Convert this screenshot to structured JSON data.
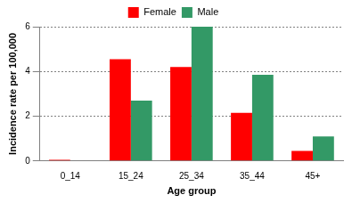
{
  "chart_data": {
    "type": "bar",
    "categories": [
      "0_14",
      "15_24",
      "25_34",
      "35_44",
      "45+"
    ],
    "series": [
      {
        "name": "Female",
        "color": "#ff0000",
        "values": [
          0.05,
          4.55,
          4.2,
          2.15,
          0.45
        ]
      },
      {
        "name": "Male",
        "color": "#339966",
        "values": [
          0,
          2.7,
          6.0,
          3.85,
          1.1
        ]
      }
    ],
    "x_label": "Age group",
    "y_label": "Incidence rate per 100,000",
    "ylim": [
      0,
      6
    ],
    "yticks": [
      0,
      2,
      4,
      6
    ],
    "grid": true,
    "legend": "top"
  }
}
